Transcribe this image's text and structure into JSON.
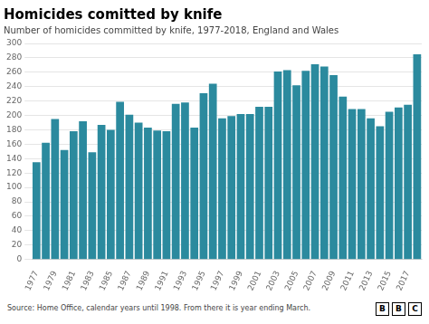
{
  "chart_data": {
    "type": "bar",
    "title": "Homicides comitted by knife",
    "subtitle": "Number of homicides committed by knife, 1977-2018, England and Wales",
    "source": "Source: Home Office, calendar years until 1998. From there it is year ending March.",
    "annotations": [
      "BBC"
    ],
    "categories": [
      "1977",
      null,
      "1979",
      null,
      "1981",
      null,
      "1983",
      null,
      "1985",
      null,
      "1987",
      null,
      "1989",
      null,
      "1991",
      null,
      "1993",
      null,
      "1995",
      null,
      "1997",
      null,
      "1999",
      null,
      "2001",
      null,
      "2003",
      null,
      "2005",
      null,
      "2007",
      null,
      "2009",
      null,
      "2011",
      null,
      "2013",
      null,
      "2015",
      null,
      "2017",
      null
    ],
    "values": [
      135,
      162,
      195,
      152,
      178,
      192,
      149,
      187,
      180,
      219,
      201,
      190,
      183,
      179,
      178,
      216,
      218,
      183,
      231,
      244,
      196,
      199,
      202,
      202,
      212,
      212,
      261,
      263,
      242,
      262,
      271,
      268,
      256,
      226,
      209,
      209,
      196,
      185,
      205,
      211,
      215,
      285
    ],
    "color": "#2b8a9e",
    "ylim": [
      0,
      300
    ],
    "yticks": [
      0,
      20,
      40,
      60,
      80,
      100,
      120,
      140,
      160,
      180,
      200,
      220,
      240,
      260,
      280,
      300
    ],
    "grid": true
  }
}
